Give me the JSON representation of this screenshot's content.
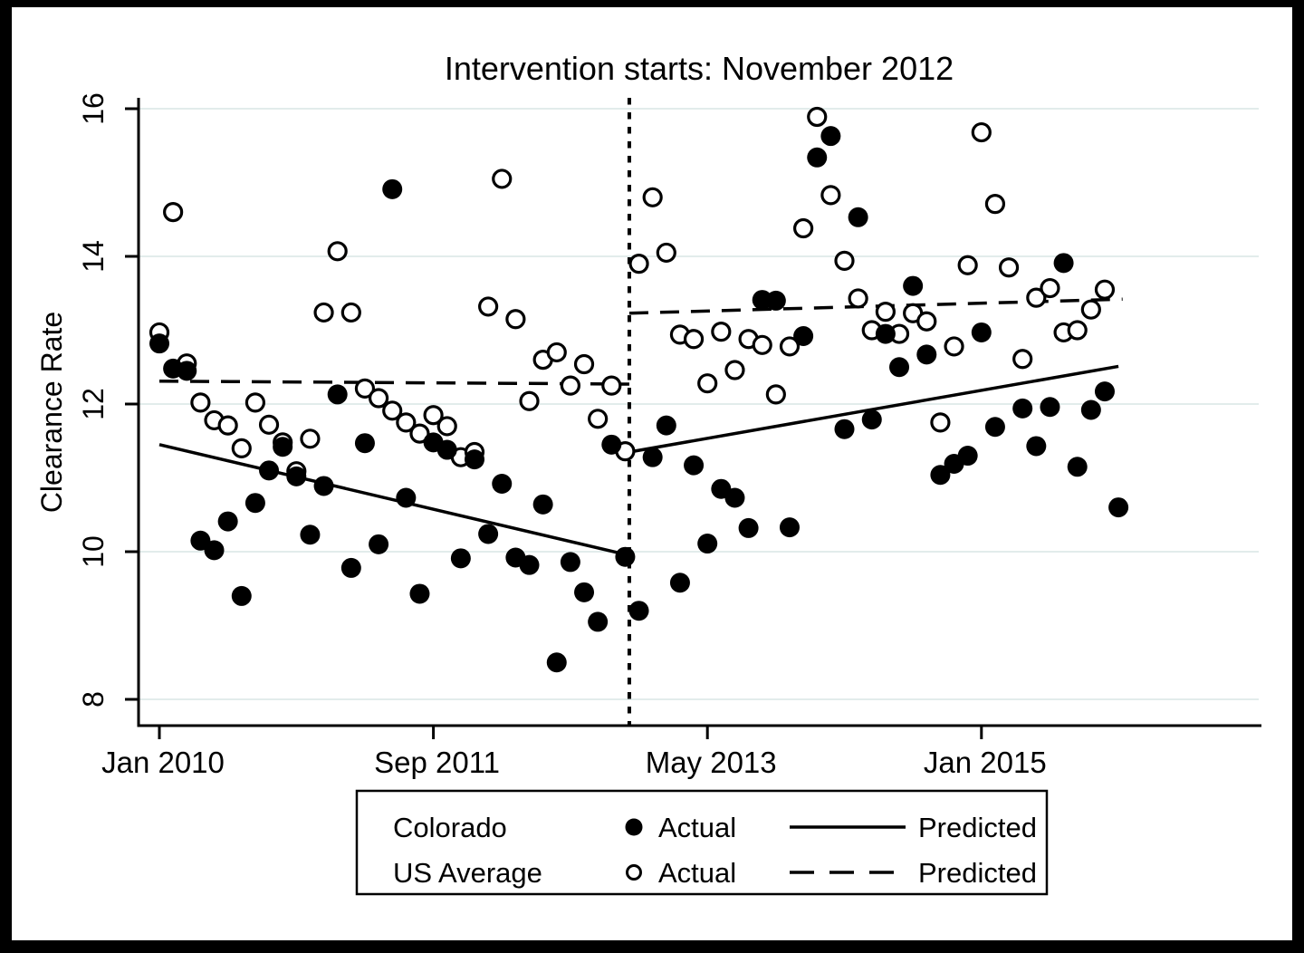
{
  "window": {
    "kind": "statistical-graph",
    "background": "#ffffff",
    "frame_color": "#000000"
  },
  "chart_data": {
    "type": "scatter",
    "title": "Intervention starts: November 2012",
    "xlabel": "",
    "ylabel": "Clearance Rate",
    "ylim": [
      7.65,
      16.15
    ],
    "y_ticks": [
      "8",
      "10",
      "12",
      "14",
      "16"
    ],
    "y_tick_values": [
      8,
      10,
      12,
      14,
      16
    ],
    "grid": "horizontal-only",
    "gridline_color": "#e2eceb",
    "point_color": "#000000",
    "x_unit": "month",
    "x_start": "Jan 2010",
    "x_end": "Dec 2015",
    "x_ticks": [
      {
        "label": "Jan 2010",
        "month_index": 0
      },
      {
        "label": "Sep 2011",
        "month_index": 20
      },
      {
        "label": "May 2013",
        "month_index": 40
      },
      {
        "label": "Jan 2015",
        "month_index": 60
      }
    ],
    "intervention_line": {
      "month_index": 34.3,
      "style": "dotted-vertical",
      "meaning": "Intervention starts: November 2012"
    },
    "series": [
      {
        "name": "Colorado Actual",
        "marker": "filled-circle",
        "start_month": "Jan 2010",
        "frequency": "monthly",
        "values": [
          12.82,
          12.48,
          12.45,
          10.15,
          10.02,
          10.41,
          9.4,
          10.66,
          11.1,
          11.42,
          11.02,
          10.23,
          10.89,
          12.13,
          9.78,
          11.47,
          10.1,
          14.91,
          10.73,
          9.43,
          11.48,
          11.38,
          9.91,
          11.25,
          10.24,
          10.92,
          9.92,
          9.82,
          10.64,
          8.5,
          9.86,
          9.45,
          9.05,
          11.45,
          9.93,
          9.2,
          11.28,
          11.71,
          9.58,
          11.17,
          10.11,
          10.85,
          10.73,
          10.32,
          13.41,
          13.4,
          10.33,
          12.92,
          15.34,
          15.63,
          11.66,
          14.53,
          11.79,
          12.95,
          12.5,
          13.6,
          12.67,
          11.04,
          11.19,
          11.3,
          12.97,
          11.69,
          null,
          11.94,
          11.43,
          11.96,
          13.91,
          11.15,
          11.92,
          12.17,
          10.6,
          null
        ]
      },
      {
        "name": "US Average Actual",
        "marker": "open-circle",
        "start_month": "Jan 2010",
        "frequency": "monthly",
        "values": [
          12.97,
          14.6,
          12.55,
          12.02,
          11.78,
          11.71,
          11.4,
          12.02,
          11.72,
          11.48,
          11.09,
          11.53,
          13.24,
          14.07,
          13.24,
          12.21,
          12.08,
          11.91,
          11.75,
          11.6,
          11.85,
          11.7,
          11.28,
          11.35,
          13.32,
          15.05,
          13.15,
          12.04,
          12.6,
          12.7,
          12.25,
          12.54,
          11.8,
          12.25,
          11.36,
          13.9,
          14.8,
          14.05,
          12.94,
          12.88,
          12.28,
          12.98,
          12.46,
          12.88,
          12.8,
          12.13,
          12.78,
          14.38,
          15.89,
          14.83,
          13.94,
          13.43,
          13.0,
          13.25,
          12.95,
          13.23,
          13.12,
          11.75,
          12.78,
          13.88,
          15.68,
          14.71,
          13.85,
          12.61,
          13.44,
          13.57,
          12.97,
          13.0,
          13.28,
          13.55,
          null,
          null
        ]
      }
    ],
    "predicted_lines": [
      {
        "name": "Colorado Predicted (pre)",
        "style": "solid",
        "points": [
          [
            0,
            11.45
          ],
          [
            34.3,
            9.95
          ]
        ]
      },
      {
        "name": "Colorado Predicted (post)",
        "style": "solid",
        "points": [
          [
            34.3,
            11.35
          ],
          [
            70.0,
            12.51
          ]
        ]
      },
      {
        "name": "US Average Predicted (pre)",
        "style": "dashed",
        "points": [
          [
            0,
            12.31
          ],
          [
            34.3,
            12.27
          ]
        ]
      },
      {
        "name": "US Average Predicted (post)",
        "style": "dashed",
        "points": [
          [
            34.3,
            13.23
          ],
          [
            70.3,
            13.42
          ]
        ]
      }
    ],
    "legend": {
      "position": "bottom-center",
      "actual_label": "Actual",
      "predicted_label": "Predicted",
      "rows": [
        {
          "series_label": "Colorado",
          "marker": "filled-circle",
          "line_style": "solid",
          "actual_label": "Actual",
          "predicted_label": "Predicted"
        },
        {
          "series_label": "US Average",
          "marker": "open-circle",
          "line_style": "dashed",
          "actual_label": "Actual",
          "predicted_label": "Predicted"
        }
      ]
    }
  }
}
